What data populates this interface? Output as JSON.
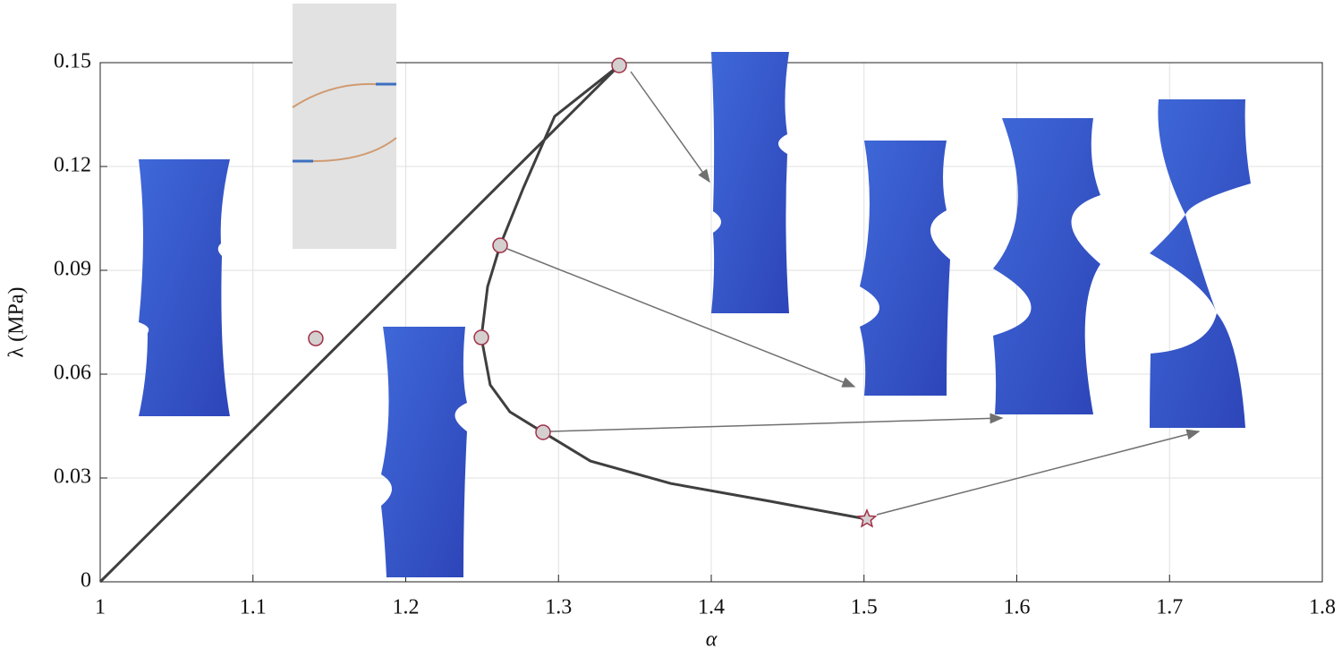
{
  "chart_data": {
    "type": "line",
    "xlabel": "α",
    "ylabel": "λ (MPa)",
    "xlim": [
      1,
      1.8
    ],
    "ylim": [
      0,
      0.15
    ],
    "xticks": [
      1,
      1.1,
      1.2,
      1.3,
      1.4,
      1.5,
      1.6,
      1.7,
      1.8
    ],
    "yticks": [
      0,
      0.03,
      0.06,
      0.09,
      0.12,
      0.15
    ],
    "grid": true,
    "series": [
      {
        "color": "#3f3f3f",
        "x": [
          1,
          1.3397,
          1.2975,
          1.277,
          1.2618,
          1.2536,
          1.2495,
          1.2553,
          1.2682,
          1.2899,
          1.3209,
          1.3736,
          1.4381,
          1.5019
        ],
        "values": [
          0,
          0.1492,
          0.1345,
          0.1138,
          0.0972,
          0.0853,
          0.0706,
          0.0569,
          0.0491,
          0.0432,
          0.0349,
          0.0284,
          0.0233,
          0.0181
        ]
      },
      {
        "color": "#d4d0d0",
        "edgecolor": "#a03048",
        "marker": "circle",
        "x": [
          1.1411,
          1.3397,
          1.2618,
          1.2495,
          1.2899
        ],
        "values": [
          0.0703,
          0.1492,
          0.0972,
          0.0706,
          0.0432
        ]
      },
      {
        "color": "#d4d0d0",
        "edgecolor": "#a03048",
        "marker": "star",
        "x": [
          1.5019
        ],
        "values": [
          0.0181
        ]
      }
    ]
  }
}
